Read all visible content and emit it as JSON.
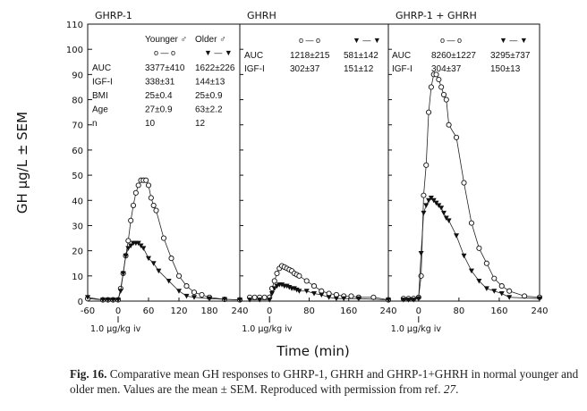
{
  "chart_data": [
    {
      "type": "line",
      "title": "GHRP-1",
      "xlim": [
        -60,
        240
      ],
      "ylim": [
        0,
        110
      ],
      "xticks": [
        -60,
        0,
        60,
        120,
        180,
        240
      ],
      "annotation": "1.0 μg/kg iv",
      "table": {
        "columns": [
          "",
          "Younger ♂",
          "Older ♂"
        ],
        "markers": [
          "",
          "o — o",
          "▼ — ▼"
        ],
        "rows": [
          [
            "AUC",
            "3377±410",
            "1622±226"
          ],
          [
            "IGF-I",
            "338±31",
            "144±13"
          ],
          [
            "BMI",
            "25±0.4",
            "25±0.9"
          ],
          [
            "Age",
            "27±0.9",
            "63±2.2"
          ],
          [
            "n",
            "10",
            "12"
          ]
        ]
      },
      "series": [
        {
          "name": "Younger ♂",
          "marker": "circle",
          "x": [
            -60,
            -30,
            -20,
            -10,
            0,
            5,
            10,
            15,
            20,
            25,
            30,
            35,
            40,
            45,
            50,
            55,
            60,
            65,
            70,
            75,
            90,
            105,
            120,
            135,
            150,
            165,
            180,
            210,
            240
          ],
          "y": [
            1,
            0.5,
            0.5,
            0.5,
            0.5,
            5,
            11,
            18,
            24,
            32,
            38,
            43,
            46,
            48,
            48,
            48,
            46,
            41,
            38,
            36,
            25,
            17,
            10,
            6,
            3.5,
            2.5,
            1.5,
            0.7,
            0.5
          ]
        },
        {
          "name": "Older ♂",
          "marker": "triangle-down",
          "x": [
            -60,
            -30,
            -20,
            -10,
            0,
            5,
            10,
            15,
            20,
            25,
            30,
            35,
            40,
            45,
            50,
            60,
            70,
            80,
            100,
            120,
            135,
            150,
            180,
            210,
            240
          ],
          "y": [
            1.5,
            0.5,
            0.5,
            0.5,
            0.5,
            4,
            11,
            18,
            21,
            22,
            23,
            23,
            23,
            22,
            21,
            17,
            15,
            12,
            8,
            4,
            2,
            1.5,
            1,
            0.7,
            0.5
          ]
        }
      ]
    },
    {
      "type": "line",
      "title": "GHRH",
      "xlim": [
        -60,
        240
      ],
      "ylim": [
        0,
        110
      ],
      "xticks": [
        0,
        80,
        160,
        240
      ],
      "annotation": "1.0 μg/kg iv",
      "table": {
        "columns": [
          "",
          "",
          ""
        ],
        "markers": [
          "",
          "o — o",
          "▼ — ▼"
        ],
        "rows": [
          [
            "AUC",
            "1218±215",
            "581±142"
          ],
          [
            "IGF-I",
            "302±37",
            "151±12"
          ]
        ]
      },
      "series": [
        {
          "name": "Younger ♂",
          "marker": "circle",
          "x": [
            -40,
            -30,
            -20,
            -10,
            0,
            5,
            10,
            15,
            20,
            25,
            30,
            35,
            40,
            45,
            50,
            55,
            60,
            75,
            90,
            105,
            120,
            135,
            150,
            165,
            180,
            210,
            240
          ],
          "y": [
            1.5,
            1.5,
            1.5,
            1.5,
            1.5,
            5,
            8,
            11,
            13,
            14,
            13.5,
            13,
            12.5,
            12,
            11,
            10.5,
            10,
            8,
            6,
            4,
            3,
            2.5,
            2,
            2,
            1.5,
            1.5,
            0.5
          ]
        },
        {
          "name": "Older ♂",
          "marker": "triangle-down",
          "x": [
            -40,
            -20,
            0,
            5,
            10,
            15,
            20,
            25,
            30,
            35,
            40,
            45,
            50,
            55,
            60,
            75,
            90,
            105,
            120,
            135,
            150,
            180,
            240
          ],
          "y": [
            0.5,
            0.5,
            0.5,
            3,
            5,
            6,
            6.5,
            6.5,
            6,
            6,
            5.5,
            5,
            5,
            4.5,
            4,
            4,
            3,
            2.5,
            1.5,
            1,
            1,
            1,
            0.5
          ]
        }
      ]
    },
    {
      "type": "line",
      "title": "GHRP-1 + GHRH",
      "xlim": [
        -60,
        240
      ],
      "ylim": [
        0,
        110
      ],
      "xticks": [
        0,
        80,
        160,
        240
      ],
      "annotation": "1.0 μg/kg iv",
      "table": {
        "columns": [
          "",
          "",
          ""
        ],
        "markers": [
          "",
          "o — o",
          "▼ — ▼"
        ],
        "rows": [
          [
            "AUC",
            "8260±1227",
            "3295±737"
          ],
          [
            "IGF-I",
            "304±37",
            "150±13"
          ]
        ]
      },
      "series": [
        {
          "name": "Younger ♂",
          "marker": "circle",
          "x": [
            -30,
            -20,
            -10,
            0,
            5,
            10,
            15,
            20,
            25,
            30,
            35,
            40,
            45,
            50,
            55,
            60,
            75,
            90,
            105,
            120,
            135,
            150,
            165,
            180,
            210,
            240
          ],
          "y": [
            1,
            1,
            1,
            1.5,
            10,
            42,
            54,
            75,
            85,
            90,
            90,
            88,
            85,
            82,
            80,
            70,
            65,
            47,
            31,
            21,
            15,
            9,
            6,
            4,
            2,
            1.5
          ]
        },
        {
          "name": "Older ♂",
          "marker": "triangle-down",
          "x": [
            -30,
            -20,
            -10,
            0,
            5,
            10,
            15,
            20,
            25,
            30,
            35,
            40,
            45,
            50,
            55,
            60,
            75,
            90,
            105,
            120,
            135,
            150,
            165,
            180,
            240
          ],
          "y": [
            0.5,
            0.5,
            0.5,
            1,
            19,
            35,
            38,
            40,
            41,
            40,
            39,
            38,
            37,
            35,
            33,
            32,
            26,
            18,
            12,
            8,
            5,
            4,
            3,
            1.5,
            1
          ]
        }
      ]
    }
  ],
  "yaxis": {
    "label": "GH  μg/L ± SEM",
    "ticks": [
      0,
      10,
      20,
      30,
      40,
      50,
      60,
      70,
      80,
      90,
      100,
      110
    ]
  },
  "xaxis": {
    "label": "Time (min)"
  },
  "caption": {
    "fig": "Fig. 16.",
    "text": " Comparative mean GH responses to GHRP-1, GHRH and GHRP-1+GHRH in normal younger and older men. Values are the mean ± SEM. Reproduced with permission from ref. ",
    "ref": "27",
    "end": "."
  }
}
